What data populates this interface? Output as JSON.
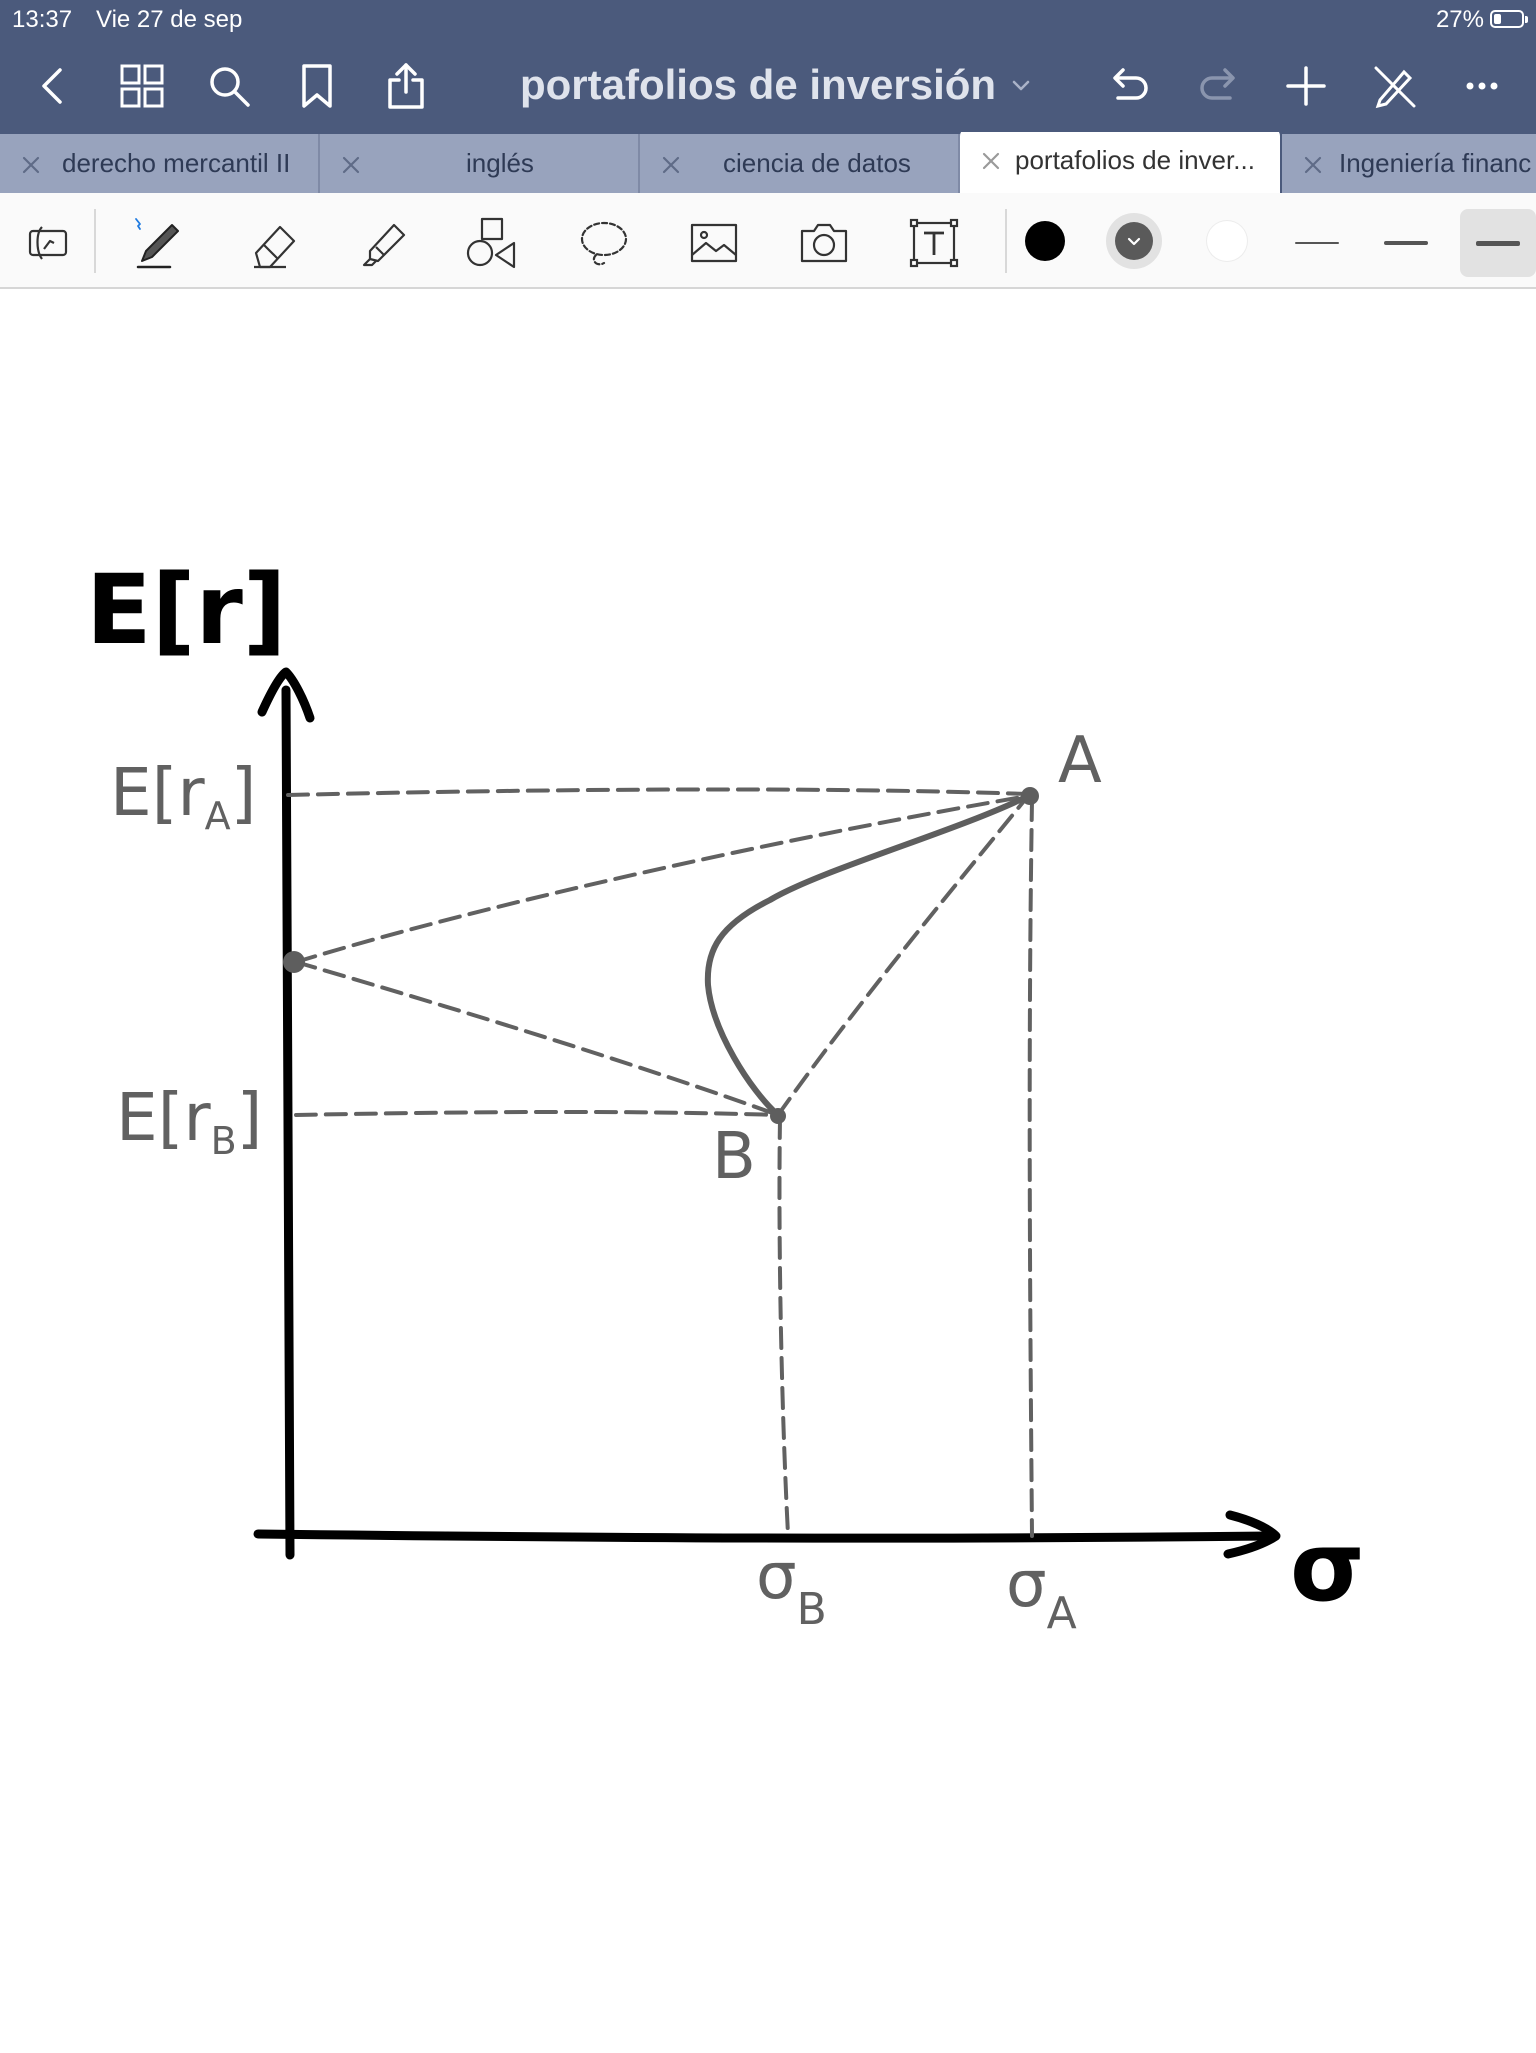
{
  "status_bar": {
    "time": "13:37",
    "date": "Vie 27 de sep",
    "battery_percent": "27%",
    "battery_level": 0.27
  },
  "nav": {
    "document_title": "portafolios de inversión"
  },
  "tabs": [
    {
      "label": "derecho mercantil II",
      "active": false
    },
    {
      "label": "inglés",
      "active": false
    },
    {
      "label": "ciencia de datos",
      "active": false
    },
    {
      "label": "portafolios de inver...",
      "active": true
    },
    {
      "label": "Ingeniería financ",
      "active": false
    }
  ],
  "toolbar": {
    "tools": [
      "read-only-mode-icon",
      "pen-icon",
      "eraser-icon",
      "highlighter-icon",
      "shapes-icon",
      "lasso-icon",
      "image-icon",
      "camera-icon",
      "text-box-icon"
    ],
    "colors": {
      "black": "#000000",
      "gray": "#5a5a5a",
      "white": "#ffffff"
    },
    "selected_color": "gray",
    "stroke_widths": [
      "thin",
      "medium",
      "thick"
    ],
    "selected_width": "thick"
  },
  "sketch": {
    "y_axis_label": "E[r]",
    "x_axis_label": "σ",
    "label_era": "E[r",
    "label_era_sub": "A",
    "label_erb": "E[r",
    "label_erb_sub": "B",
    "point_a": "A",
    "point_b": "B",
    "sigma_b": "σ",
    "sigma_b_sub": "B",
    "sigma_a": "σ",
    "sigma_a_sub": "A"
  }
}
